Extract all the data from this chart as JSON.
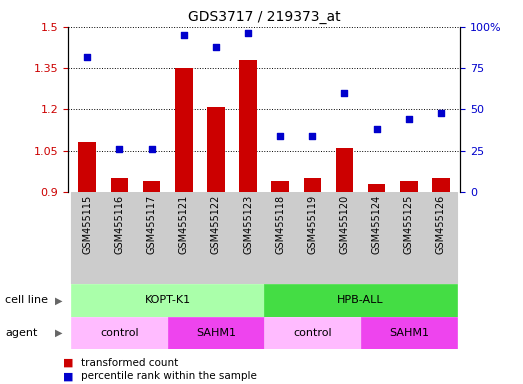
{
  "title": "GDS3717 / 219373_at",
  "samples": [
    "GSM455115",
    "GSM455116",
    "GSM455117",
    "GSM455121",
    "GSM455122",
    "GSM455123",
    "GSM455118",
    "GSM455119",
    "GSM455120",
    "GSM455124",
    "GSM455125",
    "GSM455126"
  ],
  "bar_values": [
    1.08,
    0.95,
    0.94,
    1.35,
    1.21,
    1.38,
    0.94,
    0.95,
    1.06,
    0.93,
    0.94,
    0.95
  ],
  "scatter_values": [
    82,
    26,
    26,
    95,
    88,
    96,
    34,
    34,
    60,
    38,
    44,
    48
  ],
  "bar_color": "#cc0000",
  "scatter_color": "#0000cc",
  "ylim_left": [
    0.9,
    1.5
  ],
  "ylim_right": [
    0,
    100
  ],
  "yticks_left": [
    0.9,
    1.05,
    1.2,
    1.35,
    1.5
  ],
  "yticks_right": [
    0,
    25,
    50,
    75,
    100
  ],
  "ytick_labels_left": [
    "0.9",
    "1.05",
    "1.2",
    "1.35",
    "1.5"
  ],
  "ytick_labels_right": [
    "0",
    "25",
    "50",
    "75",
    "100%"
  ],
  "cell_line_groups": [
    {
      "label": "KOPT-K1",
      "start": 0,
      "end": 6,
      "color": "#aaffaa"
    },
    {
      "label": "HPB-ALL",
      "start": 6,
      "end": 12,
      "color": "#44dd44"
    }
  ],
  "agent_groups": [
    {
      "label": "control",
      "start": 0,
      "end": 3,
      "color": "#ffbbff"
    },
    {
      "label": "SAHM1",
      "start": 3,
      "end": 6,
      "color": "#ee44ee"
    },
    {
      "label": "control",
      "start": 6,
      "end": 9,
      "color": "#ffbbff"
    },
    {
      "label": "SAHM1",
      "start": 9,
      "end": 12,
      "color": "#ee44ee"
    }
  ],
  "legend_bar_label": "transformed count",
  "legend_scatter_label": "percentile rank within the sample",
  "cell_line_label": "cell line",
  "agent_label": "agent",
  "bar_base": 0.9,
  "sample_box_color": "#cccccc",
  "sample_text_color": "#000000",
  "label_fontsize": 8,
  "tick_fontsize": 8,
  "sample_fontsize": 7
}
